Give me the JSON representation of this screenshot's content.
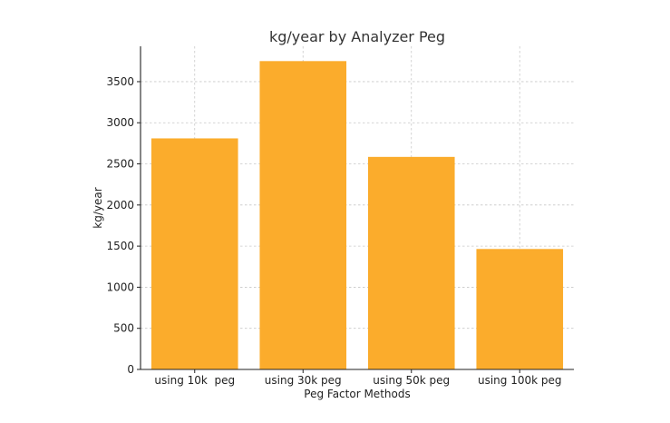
{
  "chart_data": {
    "type": "bar",
    "title": "kg/year by Analyzer Peg",
    "xlabel": "Peg Factor Methods",
    "ylabel": "kg/year",
    "categories": [
      "using 10k  peg",
      "using 30k peg",
      "using 50k peg",
      "using 100k peg"
    ],
    "values": [
      2810,
      3750,
      2585,
      1465
    ],
    "ylim": [
      0,
      3930
    ],
    "yticks": [
      0,
      500,
      1000,
      1500,
      2000,
      2500,
      3000,
      3500
    ],
    "grid": true,
    "bar_color": "#FBAC2C"
  }
}
